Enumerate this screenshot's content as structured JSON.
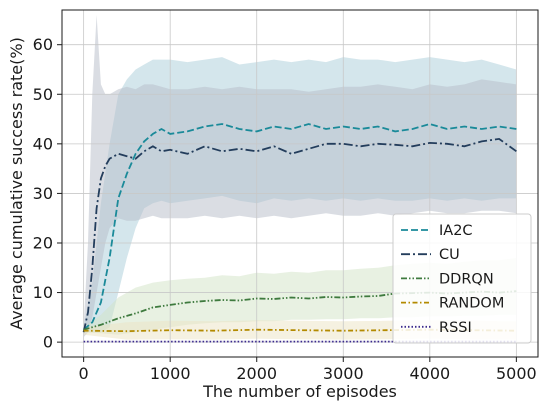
{
  "chart_data": {
    "type": "line",
    "title": "",
    "xlabel": "The number of episodes",
    "ylabel": "Average cumulative success rate(%)",
    "xlim": [
      -250,
      5250
    ],
    "ylim": [
      -3,
      67
    ],
    "x_ticks": [
      0,
      1000,
      2000,
      3000,
      4000,
      5000
    ],
    "y_ticks": [
      0,
      10,
      20,
      30,
      40,
      50,
      60
    ],
    "grid": true,
    "legend_position": "lower-right",
    "series": [
      {
        "name": "IA2C",
        "color": "#1a8a99",
        "dash": "dashed",
        "band_color": "#a9ced9",
        "x": [
          0,
          100,
          200,
          300,
          400,
          500,
          600,
          700,
          800,
          900,
          1000,
          1200,
          1400,
          1600,
          1800,
          2000,
          2200,
          2400,
          2600,
          2800,
          3000,
          3200,
          3400,
          3600,
          3800,
          4000,
          4200,
          4400,
          4600,
          4800,
          5000
        ],
        "values": [
          2.5,
          4,
          8,
          17,
          29,
          34,
          38,
          40.5,
          42,
          43,
          42,
          42.5,
          43.5,
          44,
          43,
          42.5,
          43.5,
          43,
          44,
          43,
          43.5,
          43,
          43.5,
          42.5,
          43,
          44,
          43,
          43.5,
          43,
          43.5,
          43
        ],
        "upper": [
          3,
          12,
          28,
          40,
          50,
          53,
          55,
          56,
          57,
          57,
          57,
          56.5,
          57,
          57.5,
          56,
          56.5,
          57,
          56.5,
          57,
          56.5,
          57.5,
          57,
          57,
          56.5,
          57,
          57.5,
          57,
          56.5,
          57,
          56,
          55
        ],
        "lower": [
          2,
          2,
          2,
          3,
          10,
          17,
          23,
          27,
          28,
          28.5,
          28,
          28.5,
          29,
          29.5,
          28.5,
          28,
          29,
          28.5,
          29,
          28.5,
          29,
          28.5,
          29,
          28.5,
          28.5,
          29,
          28.5,
          29,
          28.5,
          29,
          29
        ]
      },
      {
        "name": "CU",
        "color": "#233d5c",
        "dash": "dashdot",
        "band_color": "#b5bcc8",
        "x": [
          0,
          50,
          100,
          150,
          200,
          250,
          300,
          400,
          500,
          600,
          700,
          800,
          900,
          1000,
          1200,
          1400,
          1600,
          1800,
          2000,
          2200,
          2400,
          2600,
          2800,
          3000,
          3200,
          3400,
          3600,
          3800,
          4000,
          4200,
          4400,
          4600,
          4800,
          5000
        ],
        "values": [
          2,
          6,
          15,
          27,
          33,
          35.5,
          37,
          38,
          37.5,
          37,
          38.5,
          39.5,
          38.5,
          38.8,
          38,
          39.5,
          38.5,
          39,
          38.5,
          39.5,
          38,
          39,
          40,
          40,
          39.5,
          40,
          39.8,
          39.5,
          40.2,
          40,
          39.5,
          40.5,
          41,
          38.5
        ],
        "upper": [
          3,
          20,
          50,
          66,
          52,
          50,
          50,
          51,
          51.5,
          51,
          52,
          52,
          51.5,
          51,
          51,
          51.5,
          51,
          51.5,
          51,
          51,
          51,
          50.5,
          51,
          51.5,
          51.5,
          52,
          51.5,
          51,
          52,
          51.5,
          52,
          53,
          52.5,
          52
        ],
        "lower": [
          1,
          2,
          5,
          10,
          15,
          20,
          23,
          25,
          24.5,
          24.5,
          25,
          25.5,
          25,
          25,
          25,
          25.5,
          25,
          25.5,
          25,
          25.5,
          25,
          25.5,
          26,
          25.5,
          25.5,
          26,
          25.5,
          26,
          26.5,
          26,
          26,
          26.5,
          26.5,
          26
        ]
      },
      {
        "name": "DDRQN",
        "color": "#3e7a3e",
        "dash": "dashdotdot",
        "band_color": "#d2e3c5",
        "x": [
          0,
          200,
          400,
          600,
          800,
          1000,
          1200,
          1400,
          1600,
          1800,
          2000,
          2200,
          2400,
          2600,
          2800,
          3000,
          3200,
          3400,
          3600,
          3800,
          4000,
          4200,
          4400,
          4600,
          4800,
          5000
        ],
        "values": [
          2.5,
          3.5,
          4.8,
          5.8,
          7,
          7.5,
          8,
          8.3,
          8.5,
          8.4,
          8.8,
          8.7,
          9,
          8.8,
          9.1,
          9,
          9.2,
          9.3,
          9.8,
          9.9,
          10,
          9.8,
          10,
          10.2,
          10,
          10.3
        ],
        "upper": [
          3,
          5.5,
          9,
          11,
          12,
          12.5,
          12.8,
          13,
          13.5,
          13.3,
          14,
          13.8,
          14.2,
          14,
          14.5,
          14.5,
          14.8,
          15,
          15.5,
          15.8,
          16,
          15.8,
          16.2,
          16.5,
          16.5,
          17
        ],
        "lower": [
          2,
          1.8,
          1.5,
          2,
          2.5,
          3,
          3.5,
          3.8,
          4,
          4,
          4.2,
          4.2,
          4.5,
          4.5,
          4.6,
          4.6,
          4.8,
          4.8,
          5,
          5,
          5.2,
          5.2,
          5.3,
          5.3,
          5.5,
          5.5
        ]
      },
      {
        "name": "RANDOM",
        "color": "#b38a00",
        "dash": "dashdot-short",
        "band_color": "#ece3c4",
        "x": [
          0,
          500,
          1000,
          1500,
          2000,
          2500,
          3000,
          3500,
          4000,
          4500,
          5000
        ],
        "values": [
          2.3,
          2.2,
          2.4,
          2.3,
          2.5,
          2.4,
          2.3,
          2.4,
          2.5,
          2.4,
          2.3
        ],
        "upper": [
          3,
          4,
          4.3,
          4.2,
          4.4,
          4.3,
          4.2,
          4.3,
          4.4,
          4.3,
          4.2
        ],
        "lower": [
          1.5,
          0.5,
          0.6,
          0.5,
          0.7,
          0.6,
          0.5,
          0.6,
          0.7,
          0.6,
          0.5
        ]
      },
      {
        "name": "RSSI",
        "color": "#3b2a8c",
        "dash": "dotted",
        "band_color": "#d8d4ea",
        "x": [
          0,
          1000,
          2000,
          3000,
          4000,
          5000
        ],
        "values": [
          0.1,
          0.1,
          0.1,
          0.1,
          0.1,
          0.1
        ],
        "upper": [
          0.3,
          0.3,
          0.3,
          0.3,
          0.3,
          0.3
        ],
        "lower": [
          0,
          0,
          0,
          0,
          0,
          0
        ]
      }
    ]
  }
}
